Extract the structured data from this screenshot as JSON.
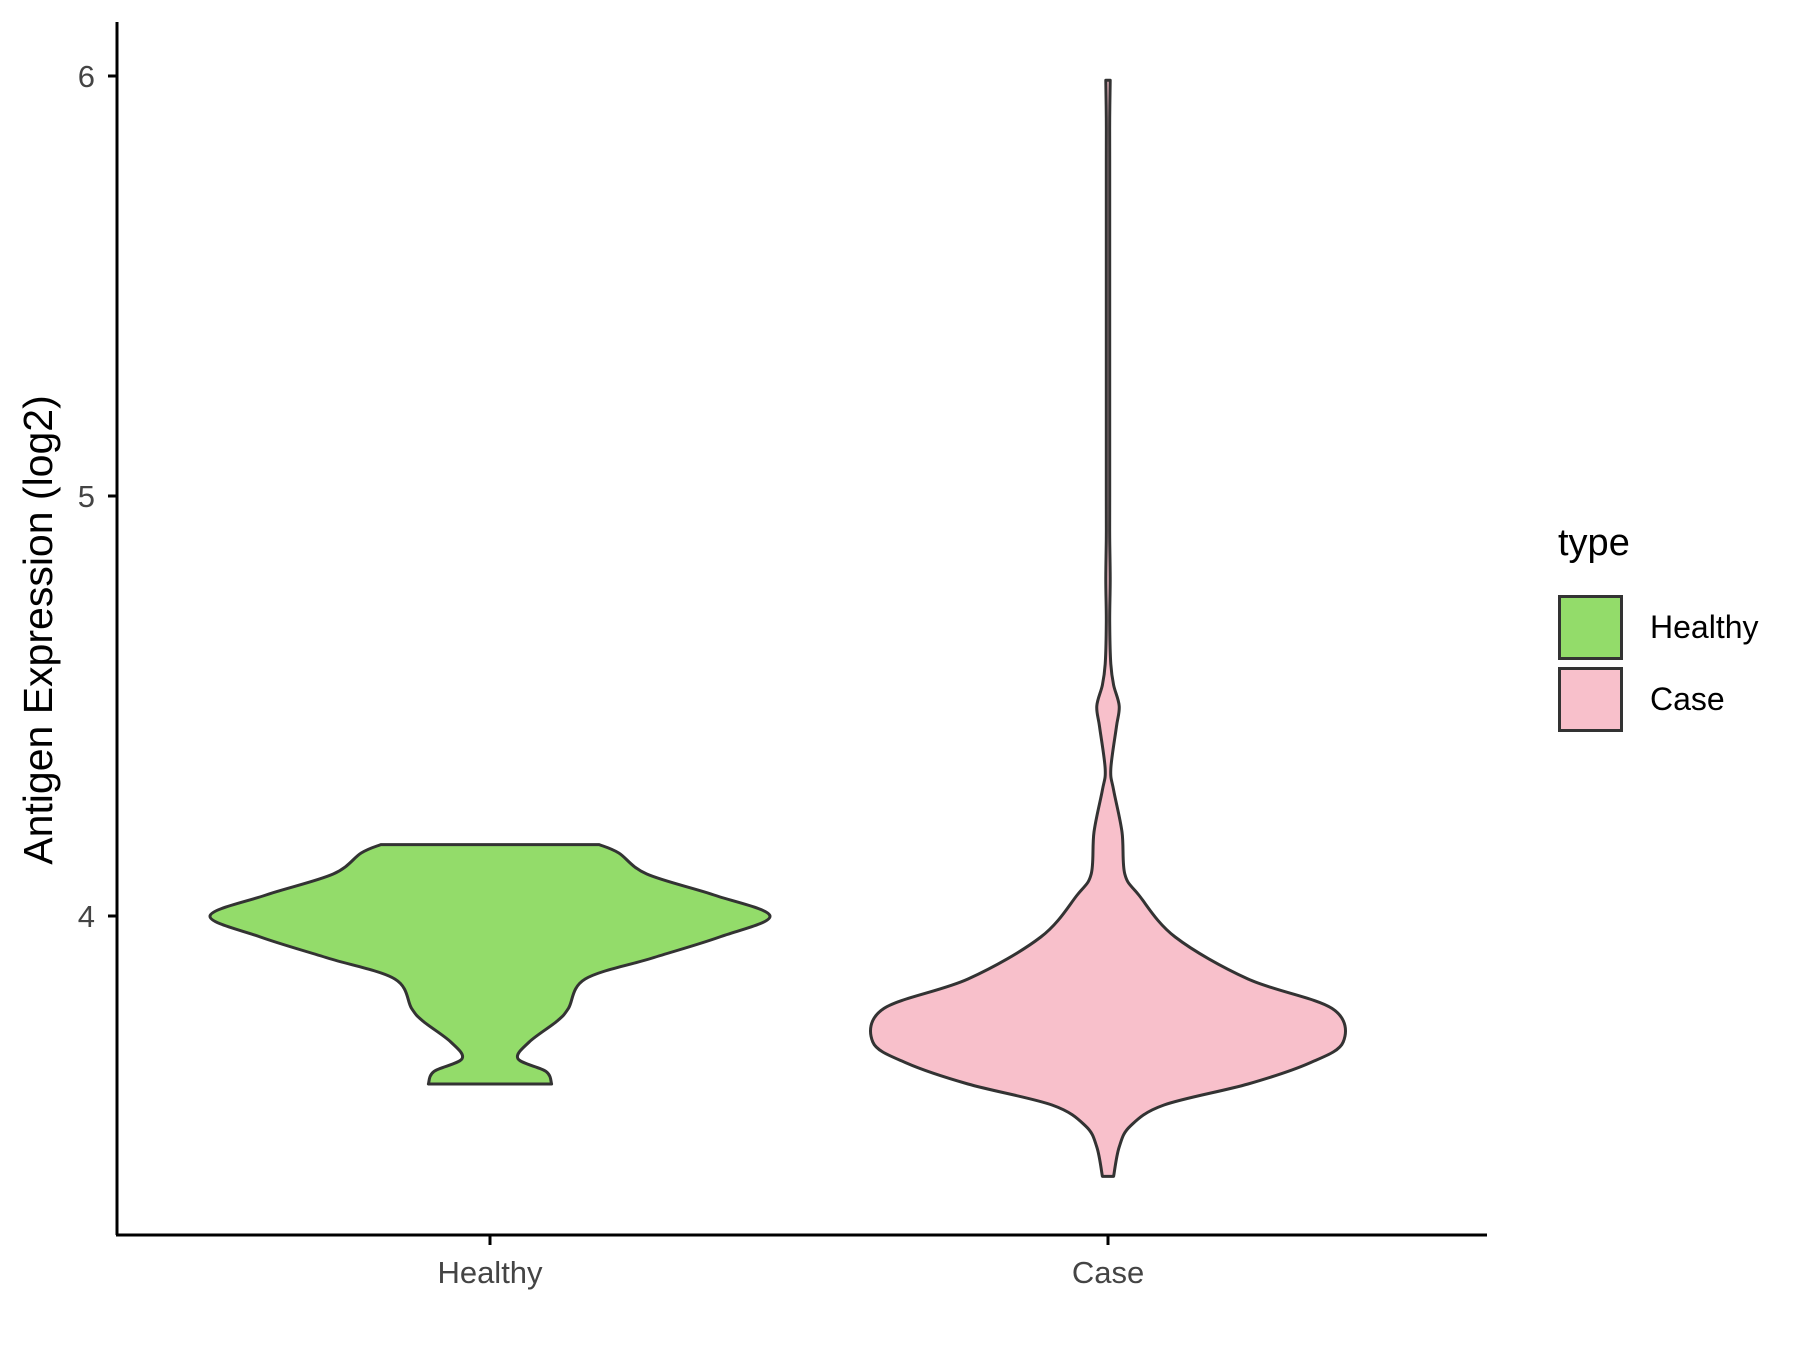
{
  "chart_data": {
    "type": "violin",
    "ylabel": "Antigen Expression (log2)",
    "xlabel": "",
    "categories": [
      "Healthy",
      "Case"
    ],
    "y_ticks": [
      4,
      5,
      6
    ],
    "ylim": [
      3.26,
      6.12
    ],
    "legend": {
      "title": "type",
      "position": "right",
      "entries": [
        {
          "label": "Healthy",
          "color": "#93DC6A"
        },
        {
          "label": "Case",
          "color": "#F8C0CB"
        }
      ]
    },
    "series": [
      {
        "name": "Healthy",
        "color": "#93DC6A",
        "range": [
          3.6,
          4.17
        ],
        "density_profile": [
          [
            3.6,
            0.22
          ],
          [
            3.63,
            0.2
          ],
          [
            3.66,
            0.1
          ],
          [
            3.7,
            0.14
          ],
          [
            3.75,
            0.24
          ],
          [
            3.78,
            0.28
          ],
          [
            3.85,
            0.34
          ],
          [
            3.9,
            0.58
          ],
          [
            3.95,
            0.82
          ],
          [
            4.0,
            1.0
          ],
          [
            4.05,
            0.8
          ],
          [
            4.1,
            0.56
          ],
          [
            4.15,
            0.46
          ],
          [
            4.17,
            0.39
          ]
        ]
      },
      {
        "name": "Case",
        "color": "#F8C0CB",
        "range": [
          3.38,
          5.99
        ],
        "density_profile": [
          [
            3.38,
            0.02
          ],
          [
            3.45,
            0.04
          ],
          [
            3.5,
            0.08
          ],
          [
            3.55,
            0.2
          ],
          [
            3.6,
            0.5
          ],
          [
            3.65,
            0.72
          ],
          [
            3.7,
            0.84
          ],
          [
            3.78,
            0.8
          ],
          [
            3.85,
            0.5
          ],
          [
            3.95,
            0.24
          ],
          [
            4.05,
            0.11
          ],
          [
            4.1,
            0.06
          ],
          [
            4.2,
            0.05
          ],
          [
            4.3,
            0.02
          ],
          [
            4.35,
            0.01
          ],
          [
            4.45,
            0.03
          ],
          [
            4.5,
            0.04
          ],
          [
            4.55,
            0.02
          ],
          [
            4.6,
            0.01
          ],
          [
            4.7,
            0.005
          ],
          [
            4.8,
            0.008
          ],
          [
            4.9,
            0.004
          ],
          [
            5.0,
            0.002
          ],
          [
            5.5,
            0.002
          ],
          [
            5.8,
            0.002
          ],
          [
            5.9,
            0.004
          ],
          [
            5.99,
            0.008
          ]
        ]
      }
    ]
  }
}
